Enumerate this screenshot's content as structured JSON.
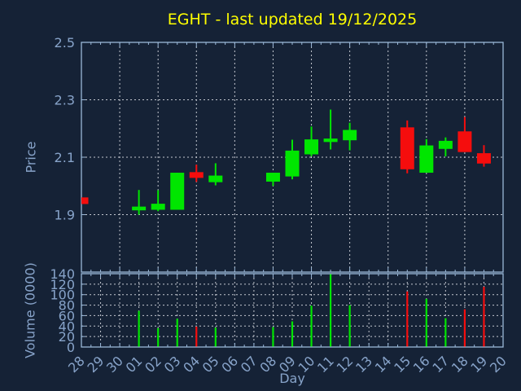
{
  "title": "EGHT - last updated 19/12/2025",
  "colors": {
    "background": "#152236",
    "frame": "#9ab8d8",
    "tick_label": "#87a3c9",
    "grid": "#c3c7cf",
    "title": "#ffff00",
    "up": "#00e600",
    "down": "#f50d0d"
  },
  "chart_data": {
    "type": "candlestick",
    "title": "EGHT - last updated 19/12/2025",
    "xlabel": "Day",
    "x_categories": [
      "28",
      "29",
      "30",
      "01",
      "02",
      "03",
      "04",
      "05",
      "06",
      "07",
      "08",
      "09",
      "10",
      "11",
      "12",
      "13",
      "14",
      "15",
      "16",
      "17",
      "18",
      "19",
      "20"
    ],
    "panels": [
      {
        "name": "price",
        "ylabel": "Price",
        "yticks": [
          2.5,
          2.3,
          2.1,
          1.9
        ],
        "ylim": [
          1.7,
          2.5
        ],
        "grid": "dashed",
        "x_grid_every_days": 2
      },
      {
        "name": "volume",
        "ylabel": "Volume (0000)",
        "yticks": [
          140,
          120,
          100,
          80,
          60,
          40,
          20,
          0
        ],
        "ylim": [
          0,
          140
        ],
        "grid": "dashed",
        "x_grid_every_days": 1
      }
    ],
    "ohlc": [
      {
        "day": "28",
        "open": 1.96,
        "high": 1.96,
        "low": 1.937,
        "close": 1.937,
        "volume": 0
      },
      {
        "day": "01",
        "open": 1.915,
        "high": 1.986,
        "low": 1.9,
        "close": 1.928,
        "volume": 69
      },
      {
        "day": "02",
        "open": 1.917,
        "high": 1.985,
        "low": 1.912,
        "close": 1.938,
        "volume": 36
      },
      {
        "day": "03",
        "open": 1.917,
        "high": 2.046,
        "low": 1.917,
        "close": 2.046,
        "volume": 54
      },
      {
        "day": "04",
        "open": 2.048,
        "high": 2.074,
        "low": 2.014,
        "close": 2.028,
        "volume": 39
      },
      {
        "day": "05",
        "open": 2.013,
        "high": 2.079,
        "low": 2.002,
        "close": 2.036,
        "volume": 37
      },
      {
        "day": "08",
        "open": 2.015,
        "high": 2.046,
        "low": 2.0,
        "close": 2.046,
        "volume": 38
      },
      {
        "day": "09",
        "open": 2.033,
        "high": 2.161,
        "low": 2.023,
        "close": 2.123,
        "volume": 49
      },
      {
        "day": "10",
        "open": 2.11,
        "high": 2.207,
        "low": 2.103,
        "close": 2.162,
        "volume": 79
      },
      {
        "day": "11",
        "open": 2.153,
        "high": 2.266,
        "low": 2.127,
        "close": 2.165,
        "volume": 139
      },
      {
        "day": "12",
        "open": 2.159,
        "high": 2.22,
        "low": 2.124,
        "close": 2.195,
        "volume": 80
      },
      {
        "day": "15",
        "open": 2.204,
        "high": 2.228,
        "low": 2.044,
        "close": 2.058,
        "volume": 106
      },
      {
        "day": "16",
        "open": 2.046,
        "high": 2.163,
        "low": 2.046,
        "close": 2.141,
        "volume": 92
      },
      {
        "day": "17",
        "open": 2.129,
        "high": 2.169,
        "low": 2.103,
        "close": 2.157,
        "volume": 55
      },
      {
        "day": "18",
        "open": 2.19,
        "high": 2.24,
        "low": 2.118,
        "close": 2.118,
        "volume": 72
      },
      {
        "day": "19",
        "open": 2.114,
        "high": 2.142,
        "low": 2.067,
        "close": 2.078,
        "volume": 115
      }
    ]
  }
}
